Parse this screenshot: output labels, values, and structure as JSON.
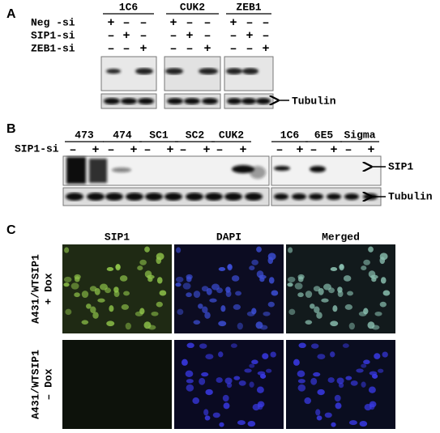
{
  "panel_a": {
    "label": "A",
    "row_labels": [
      "Neg -si",
      "SIP1-si",
      "ZEB1-si"
    ],
    "groups": [
      {
        "name": "1C6",
        "signs": [
          [
            "+",
            "–",
            "–"
          ],
          [
            "–",
            "+",
            "–"
          ],
          [
            "–",
            "–",
            "+"
          ]
        ]
      },
      {
        "name": "CUK2",
        "signs": [
          [
            "+",
            "–",
            "–"
          ],
          [
            "–",
            "+",
            "–"
          ],
          [
            "–",
            "–",
            "+"
          ]
        ]
      },
      {
        "name": "ZEB1",
        "signs": [
          [
            "+",
            "–",
            "–"
          ],
          [
            "–",
            "+",
            "–"
          ],
          [
            "–",
            "–",
            "+"
          ]
        ]
      }
    ],
    "loading": "Tubulin"
  },
  "panel_b": {
    "label": "B",
    "row_label": "SIP1-si",
    "groups": [
      {
        "name": "473",
        "signs": [
          "–",
          "+"
        ]
      },
      {
        "name": "474",
        "signs": [
          "–",
          "+"
        ]
      },
      {
        "name": "SC1",
        "signs": [
          "–",
          "+"
        ]
      },
      {
        "name": "SC2",
        "signs": [
          "–",
          "+"
        ]
      },
      {
        "name": "CUK2",
        "signs": [
          "–",
          "+"
        ]
      },
      {
        "name": "1C6",
        "signs": [
          "–",
          "+"
        ]
      },
      {
        "name": "6E5",
        "signs": [
          "–",
          "+"
        ]
      },
      {
        "name": "Sigma",
        "signs": [
          "–",
          "+"
        ]
      }
    ],
    "target": "SIP1",
    "loading": "Tubulin"
  },
  "panel_c": {
    "label": "C",
    "columns": [
      "SIP1",
      "DAPI",
      "Merged"
    ],
    "rows": [
      [
        "A431/WTSIP1",
        "+ Dox"
      ],
      [
        "A431/WTSIP1",
        "– Dox"
      ]
    ]
  }
}
